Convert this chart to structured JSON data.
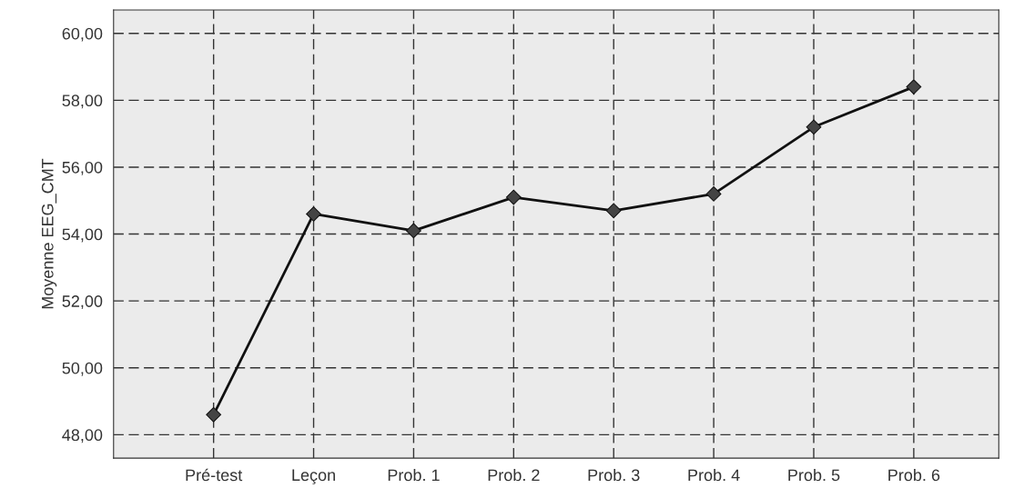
{
  "chart_data": {
    "type": "line",
    "ylabel": "Moyenne EEG_CMT",
    "categories": [
      "Pré-test",
      "Leçon",
      "Prob. 1",
      "Prob. 2",
      "Prob. 3",
      "Prob. 4",
      "Prob. 5",
      "Prob. 6"
    ],
    "series": [
      {
        "color": "#111111",
        "values": [
          48.6,
          54.6,
          54.1,
          55.1,
          54.7,
          55.2,
          57.2,
          58.4
        ]
      }
    ],
    "ylim": [
      47.3,
      60.7
    ],
    "yticks": [
      {
        "value": 48,
        "label": "48,00"
      },
      {
        "value": 50,
        "label": "50,00"
      },
      {
        "value": 52,
        "label": "52,00"
      },
      {
        "value": 54,
        "label": "54,00"
      },
      {
        "value": 56,
        "label": "56,00"
      },
      {
        "value": 58,
        "label": "58,00"
      },
      {
        "value": 60,
        "label": "60,00"
      }
    ],
    "grid": true,
    "marker": "diamond",
    "line_style": "solid"
  }
}
